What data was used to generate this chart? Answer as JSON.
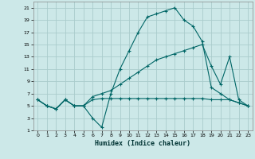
{
  "xlabel": "Humidex (Indice chaleur)",
  "bg_color": "#cce8e8",
  "grid_color": "#aacccc",
  "line_color": "#006666",
  "xlim": [
    -0.5,
    23.5
  ],
  "ylim": [
    1,
    22
  ],
  "xticks": [
    0,
    1,
    2,
    3,
    4,
    5,
    6,
    7,
    8,
    9,
    10,
    11,
    12,
    13,
    14,
    15,
    16,
    17,
    18,
    19,
    20,
    21,
    22,
    23
  ],
  "yticks": [
    1,
    3,
    5,
    7,
    9,
    11,
    13,
    15,
    17,
    19,
    21
  ],
  "line1_x": [
    0,
    1,
    2,
    3,
    4,
    5,
    6,
    7,
    8,
    9,
    10,
    11,
    12,
    13,
    14,
    15,
    16,
    17,
    18,
    19,
    20,
    21,
    22,
    23
  ],
  "line1_y": [
    6,
    5,
    4.5,
    6,
    5,
    5,
    3,
    1.5,
    7,
    11,
    14,
    17,
    19.5,
    20,
    20.5,
    21,
    19,
    18,
    15.5,
    8,
    7,
    6,
    5.5,
    5
  ],
  "line2_x": [
    0,
    1,
    2,
    3,
    4,
    5,
    6,
    7,
    8,
    9,
    10,
    11,
    12,
    13,
    14,
    15,
    16,
    17,
    18,
    19,
    20,
    21,
    22,
    23
  ],
  "line2_y": [
    6,
    5,
    4.5,
    6,
    5,
    5,
    6.5,
    7,
    7.5,
    8.5,
    9.5,
    10.5,
    11.5,
    12.5,
    13,
    13.5,
    14,
    14.5,
    15,
    11.5,
    8.5,
    13,
    6,
    5
  ],
  "line3_x": [
    0,
    1,
    2,
    3,
    4,
    5,
    6,
    7,
    8,
    9,
    10,
    11,
    12,
    13,
    14,
    15,
    16,
    17,
    18,
    19,
    20,
    21,
    22,
    23
  ],
  "line3_y": [
    6,
    5,
    4.5,
    6,
    5,
    5,
    6,
    6.2,
    6.2,
    6.2,
    6.2,
    6.2,
    6.2,
    6.2,
    6.2,
    6.2,
    6.2,
    6.2,
    6.2,
    6,
    6,
    6,
    5.5,
    5
  ]
}
